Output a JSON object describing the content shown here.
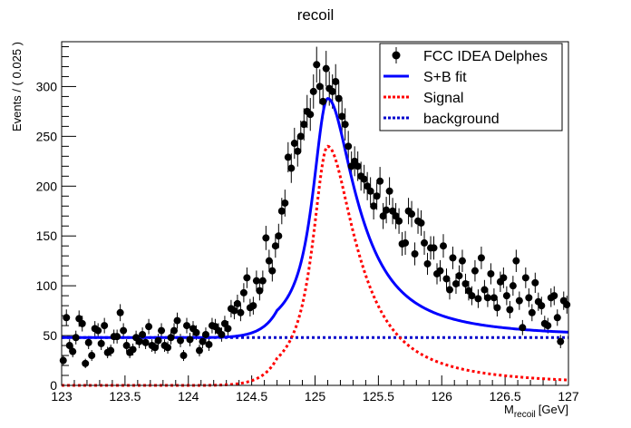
{
  "chart_data": {
    "type": "scatter",
    "title": "recoil",
    "xlabel_main": "M",
    "xlabel_sub": "recoil",
    "xlabel_unit": "[GeV]",
    "ylabel": "Events / ( 0.025 )",
    "xlim": [
      123,
      127
    ],
    "ylim": [
      0,
      345
    ],
    "x_ticks": [
      "123",
      "123.5",
      "124",
      "124.5",
      "125",
      "125.5",
      "126",
      "126.5",
      "127"
    ],
    "y_ticks": [
      "0",
      "50",
      "100",
      "150",
      "200",
      "250",
      "300"
    ],
    "legend_position": "top-right",
    "legend": [
      {
        "label": "FCC IDEA Delphes",
        "style": "marker"
      },
      {
        "label": "S+B fit",
        "style": "solid",
        "color": "#0000ff"
      },
      {
        "label": "Signal",
        "style": "dotted",
        "color": "#ff0000"
      },
      {
        "label": "background",
        "style": "dotted",
        "color": "#0000cc"
      }
    ],
    "data": {
      "name": "FCC IDEA Delphes",
      "color": "#000000",
      "x": [
        123.0125,
        123.0375,
        123.0625,
        123.0875,
        123.1125,
        123.1375,
        123.1625,
        123.1875,
        123.2125,
        123.2375,
        123.2625,
        123.2875,
        123.3125,
        123.3375,
        123.3625,
        123.3875,
        123.4125,
        123.4375,
        123.4625,
        123.4875,
        123.5125,
        123.5375,
        123.5625,
        123.5875,
        123.6125,
        123.6375,
        123.6625,
        123.6875,
        123.7125,
        123.7375,
        123.7625,
        123.7875,
        123.8125,
        123.8375,
        123.8625,
        123.8875,
        123.9125,
        123.9375,
        123.9625,
        123.9875,
        124.0125,
        124.0375,
        124.0625,
        124.0875,
        124.1125,
        124.1375,
        124.1625,
        124.1875,
        124.2125,
        124.2375,
        124.2625,
        124.2875,
        124.3125,
        124.3375,
        124.3625,
        124.3875,
        124.4125,
        124.4375,
        124.4625,
        124.4875,
        124.5125,
        124.5375,
        124.5625,
        124.5875,
        124.6125,
        124.6375,
        124.6625,
        124.6875,
        124.7125,
        124.7375,
        124.7625,
        124.7875,
        124.8125,
        124.8375,
        124.8625,
        124.8875,
        124.9125,
        124.9375,
        124.9625,
        124.9875,
        125.0125,
        125.0375,
        125.0625,
        125.0875,
        125.1125,
        125.1375,
        125.1625,
        125.1875,
        125.2125,
        125.2375,
        125.2625,
        125.2875,
        125.3125,
        125.3375,
        125.3625,
        125.3875,
        125.4125,
        125.4375,
        125.4625,
        125.4875,
        125.5125,
        125.5375,
        125.5625,
        125.5875,
        125.6125,
        125.6375,
        125.6625,
        125.6875,
        125.7125,
        125.7375,
        125.7625,
        125.7875,
        125.8125,
        125.8375,
        125.8625,
        125.8875,
        125.9125,
        125.9375,
        125.9625,
        125.9875,
        126.0125,
        126.0375,
        126.0625,
        126.0875,
        126.1125,
        126.1375,
        126.1625,
        126.1875,
        126.2125,
        126.2375,
        126.2625,
        126.2875,
        126.3125,
        126.3375,
        126.3625,
        126.3875,
        126.4125,
        126.4375,
        126.4625,
        126.4875,
        126.5125,
        126.5375,
        126.5625,
        126.5875,
        126.6125,
        126.6375,
        126.6625,
        126.6875,
        126.7125,
        126.7375,
        126.7625,
        126.7875,
        126.8125,
        126.8375,
        126.8625,
        126.8875,
        126.9125,
        126.9375,
        126.9625,
        126.9875
      ],
      "y": [
        25,
        68,
        40,
        34,
        48,
        67,
        62,
        22,
        43,
        30,
        57,
        55,
        42,
        60,
        33,
        35,
        49,
        49,
        73,
        55,
        40,
        33,
        36,
        48,
        44,
        51,
        43,
        59,
        40,
        38,
        45,
        55,
        40,
        38,
        48,
        55,
        65,
        45,
        30,
        60,
        46,
        57,
        53,
        35,
        44,
        51,
        41,
        60,
        59,
        55,
        51,
        62,
        57,
        77,
        75,
        82,
        73,
        93,
        108,
        78,
        80,
        105,
        95,
        105,
        148,
        125,
        115,
        140,
        150,
        175,
        183,
        229,
        218,
        243,
        235,
        250,
        262,
        275,
        272,
        295,
        322,
        300,
        285,
        318,
        298,
        295,
        305,
        288,
        270,
        262,
        240,
        220,
        225,
        220,
        210,
        207,
        200,
        195,
        180,
        190,
        205,
        170,
        176,
        195,
        175,
        170,
        165,
        142,
        143,
        175,
        172,
        132,
        165,
        163,
        143,
        122,
        138,
        138,
        112,
        115,
        140,
        107,
        96,
        128,
        102,
        110,
        125,
        102,
        95,
        90,
        115,
        87,
        128,
        96,
        88,
        112,
        88,
        78,
        104,
        108,
        90,
        76,
        100,
        125,
        85,
        58,
        108,
        88,
        73,
        103,
        84,
        80,
        62,
        60,
        88,
        90,
        68,
        44,
        85,
        81
      ],
      "yerr": "sqrt(N)"
    },
    "fit": {
      "background_level": 48,
      "signal_peak_x": 125.1,
      "signal_peak_y": 240,
      "sb_peak_y": 288,
      "sb_at_127": 69,
      "signal_at_127": 21
    }
  }
}
